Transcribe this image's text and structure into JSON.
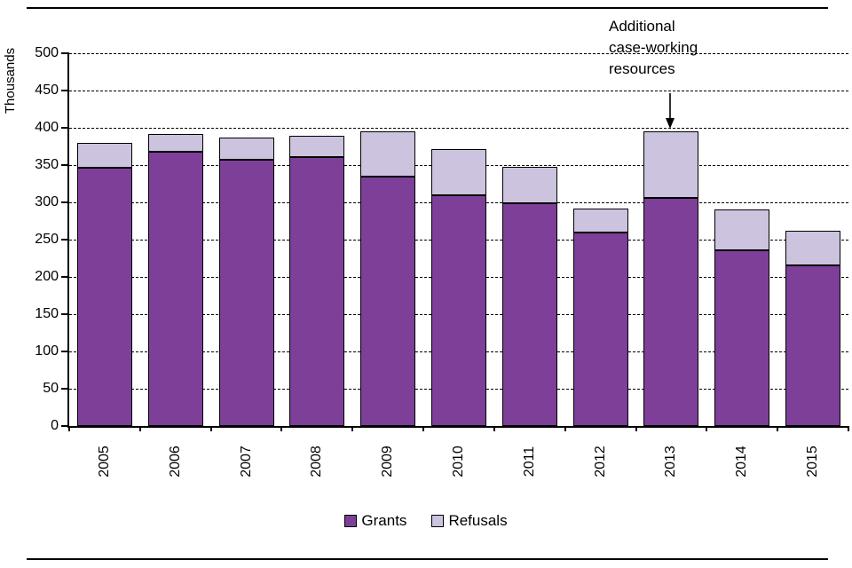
{
  "chart_data": {
    "type": "bar",
    "stacked": true,
    "title": "",
    "xlabel": "",
    "ylabel": "Thousands",
    "ylim": [
      0,
      500
    ],
    "ytick_interval": 50,
    "grid": "dashed-horizontal",
    "legend_position": "bottom",
    "categories": [
      "2005",
      "2006",
      "2007",
      "2008",
      "2009",
      "2010",
      "2011",
      "2012",
      "2013",
      "2014",
      "2015"
    ],
    "series": [
      {
        "name": "Grants",
        "color": "#7d3f98",
        "values": [
          347,
          368,
          357,
          361,
          334,
          309,
          299,
          260,
          306,
          236,
          215
        ]
      },
      {
        "name": "Refusals",
        "color": "#ccc3de",
        "values": [
          33,
          24,
          30,
          28,
          61,
          63,
          49,
          32,
          89,
          54,
          47
        ]
      }
    ],
    "annotation": {
      "text": "Additional\ncase-working\nresources",
      "target_category": "2013"
    }
  }
}
